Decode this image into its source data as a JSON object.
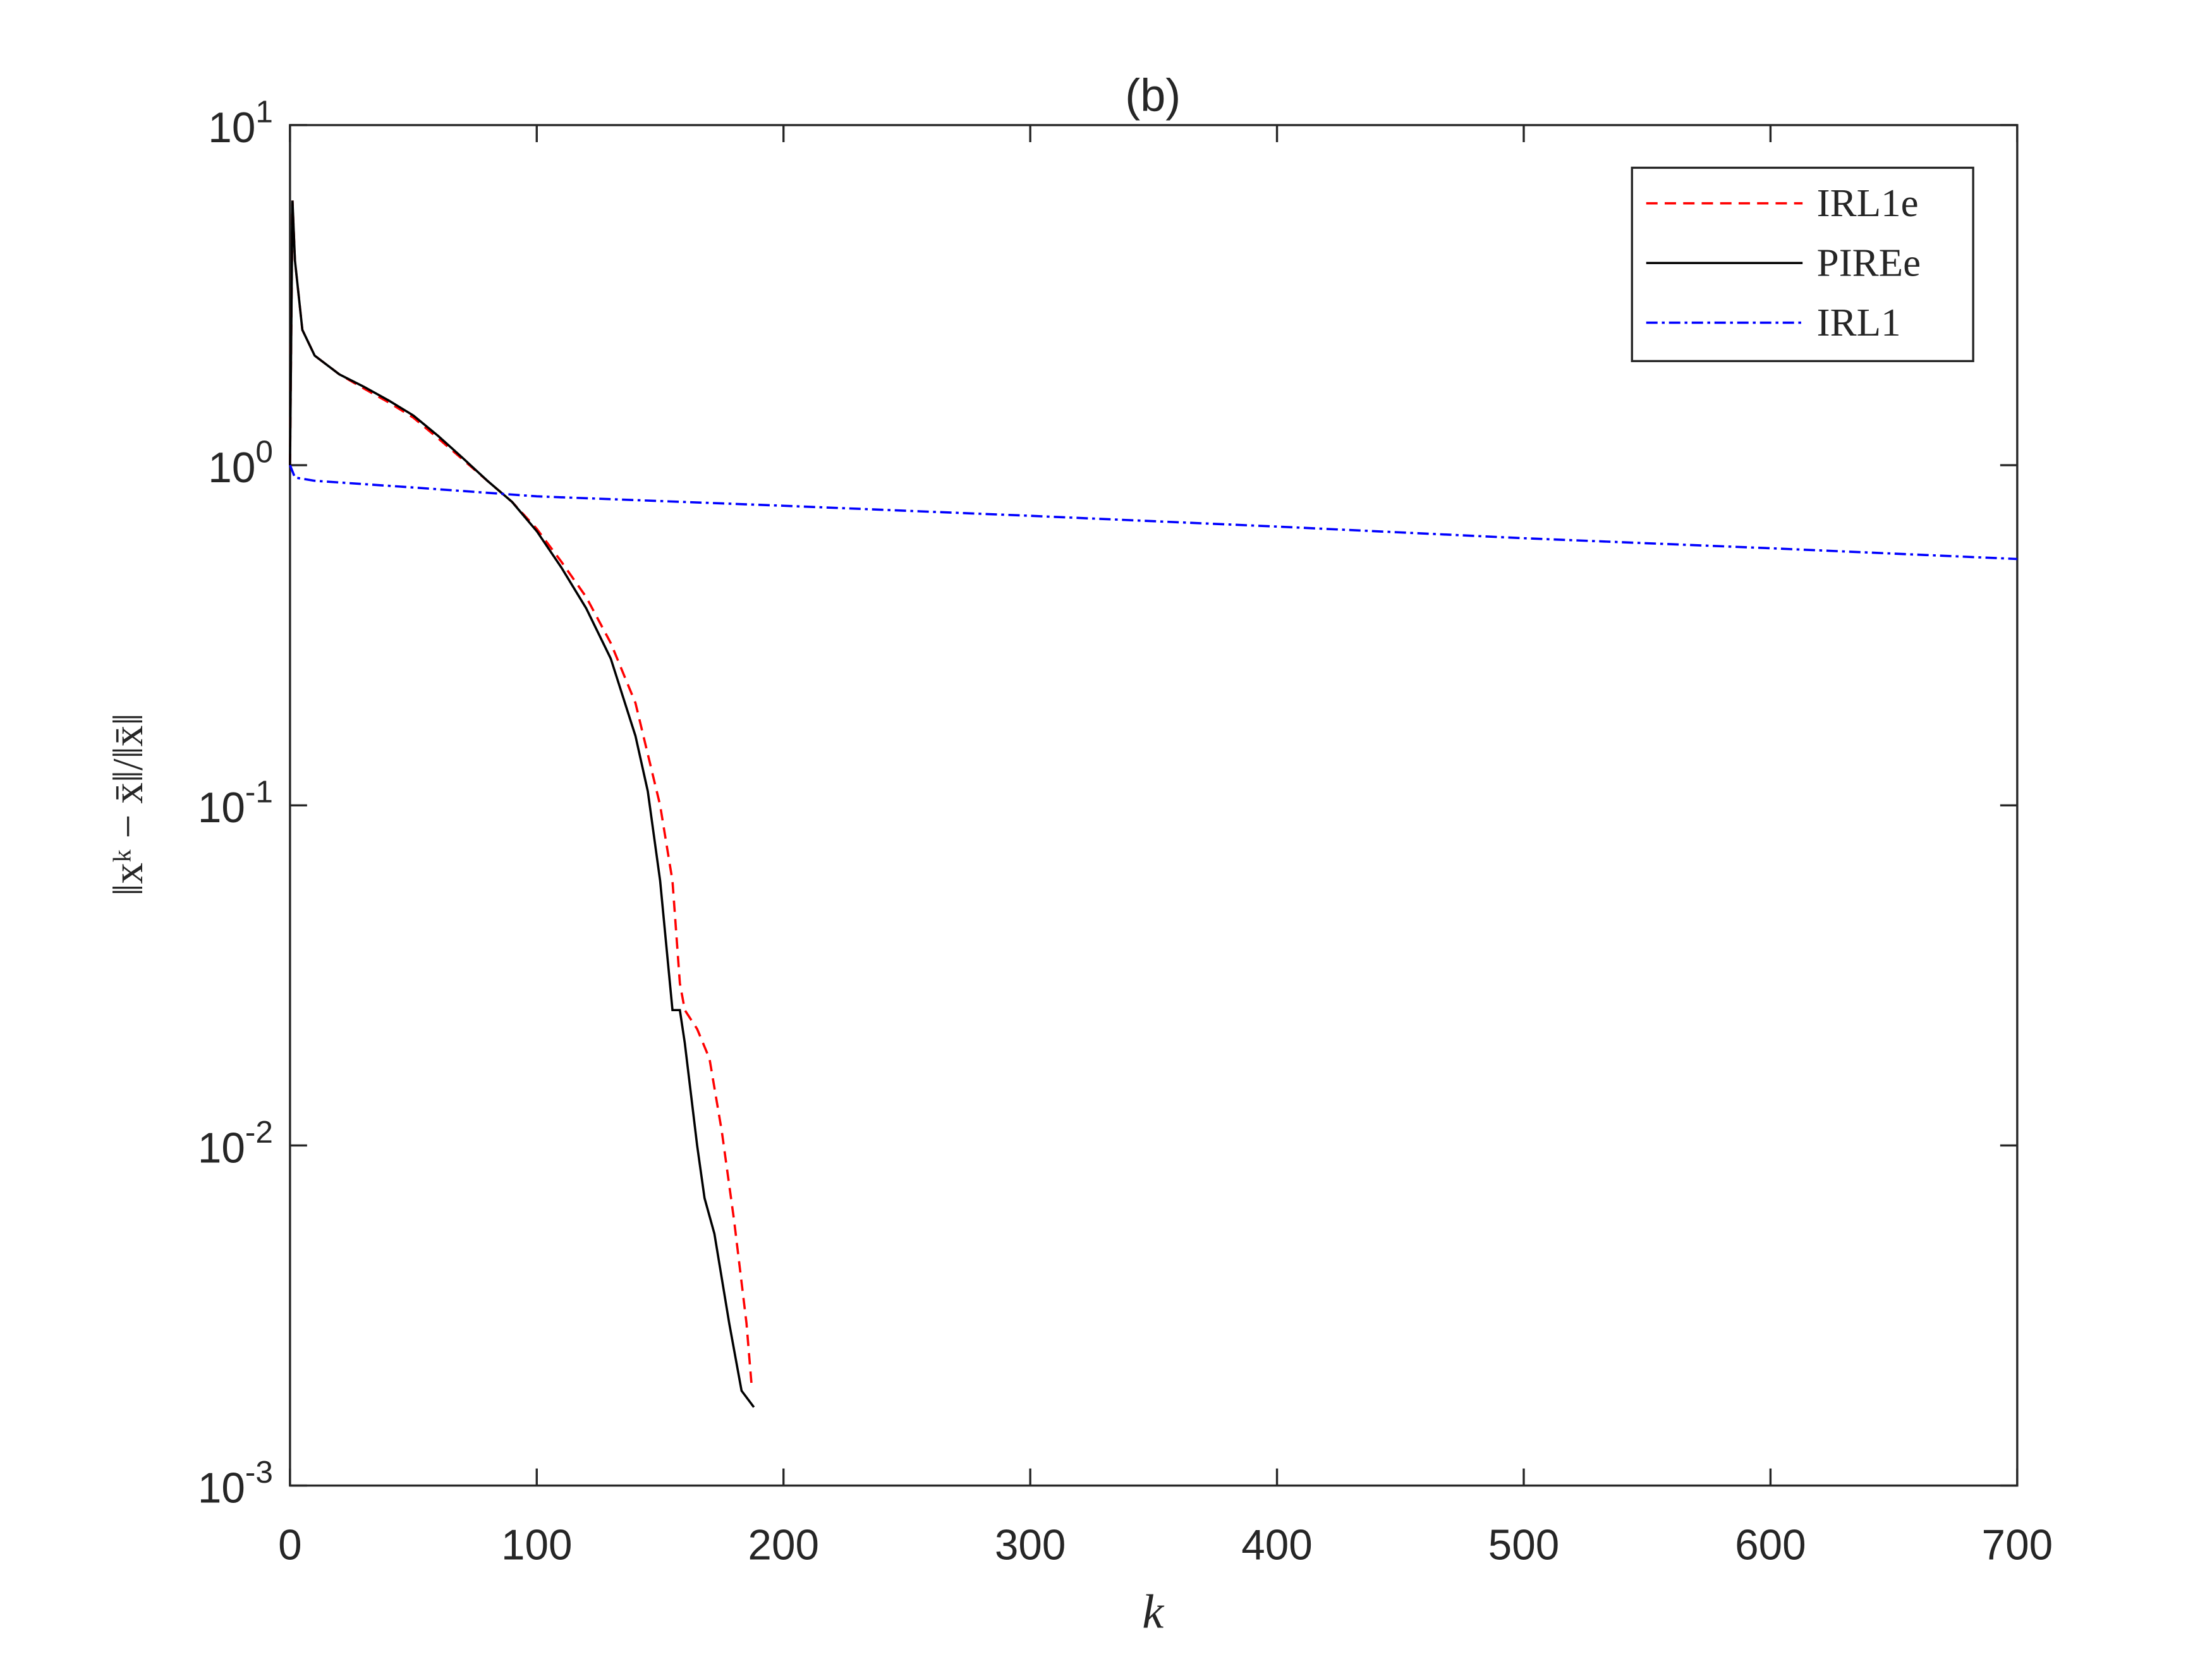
{
  "chart_data": {
    "type": "line",
    "title": "(b)",
    "xlabel": "k",
    "ylabel": "‖xᵏ − x̄‖/‖x̄‖",
    "xlim": [
      0,
      700
    ],
    "xticks": [
      0,
      100,
      200,
      300,
      400,
      500,
      600,
      700
    ],
    "ylim": [
      0.001,
      10
    ],
    "yticks": [
      {
        "value": 0.001,
        "label": "10^-3"
      },
      {
        "value": 0.01,
        "label": "10^-2"
      },
      {
        "value": 0.1,
        "label": "10^-1"
      },
      {
        "value": 1,
        "label": "10^0"
      },
      {
        "value": 10,
        "label": "10^1"
      }
    ],
    "log_y": true,
    "grid": false,
    "legend": "upper-right",
    "series": [
      {
        "name": "IRL1e",
        "color": "#ff0000",
        "dash": "dashed",
        "x": [
          0,
          1,
          2,
          5,
          10,
          20,
          30,
          40,
          50,
          60,
          70,
          80,
          90,
          100,
          110,
          120,
          130,
          140,
          150,
          155,
          158,
          160,
          165,
          170,
          175,
          180,
          185,
          187
        ],
        "values": [
          1.0,
          6.0,
          4.0,
          2.5,
          2.1,
          1.85,
          1.68,
          1.53,
          1.38,
          1.2,
          1.04,
          0.9,
          0.78,
          0.65,
          0.52,
          0.41,
          0.3,
          0.2,
          0.1,
          0.06,
          0.03,
          0.025,
          0.022,
          0.018,
          0.011,
          0.006,
          0.003,
          0.002
        ]
      },
      {
        "name": "PIREe",
        "color": "#000000",
        "dash": "solid",
        "x": [
          0,
          1,
          2,
          5,
          10,
          20,
          30,
          40,
          50,
          60,
          70,
          80,
          90,
          100,
          110,
          120,
          130,
          140,
          145,
          150,
          155,
          158,
          160,
          165,
          168,
          172,
          178,
          183,
          188
        ],
        "values": [
          1.0,
          6.0,
          4.0,
          2.5,
          2.1,
          1.85,
          1.7,
          1.55,
          1.4,
          1.22,
          1.05,
          0.9,
          0.78,
          0.64,
          0.5,
          0.38,
          0.27,
          0.16,
          0.11,
          0.06,
          0.025,
          0.025,
          0.02,
          0.01,
          0.007,
          0.0055,
          0.003,
          0.0019,
          0.0017
        ]
      },
      {
        "name": "IRL1",
        "color": "#0000ff",
        "dash": "dashdot",
        "x": [
          0,
          2,
          10,
          50,
          100,
          200,
          300,
          400,
          500,
          600,
          700
        ],
        "values": [
          1.0,
          0.92,
          0.9,
          0.86,
          0.81,
          0.76,
          0.71,
          0.66,
          0.61,
          0.57,
          0.53
        ]
      }
    ]
  }
}
